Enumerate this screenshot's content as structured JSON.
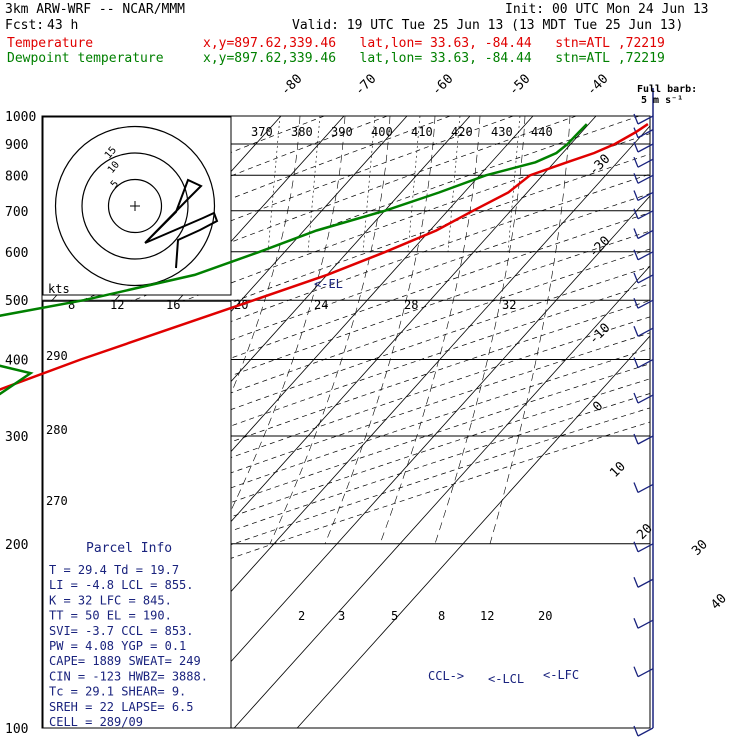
{
  "header": {
    "model": "3km ARW-WRF -- NCAR/MMM",
    "init": "Init: 00 UTC Mon 24 Jun 13",
    "fcst_label": "Fcst:",
    "fcst_value": "43 h",
    "valid": "Valid: 19 UTC Tue 25 Jun 13 (13 MDT Tue 25 Jun 13)",
    "temp_label": "Temperature",
    "dew_label": "Dewpoint temperature",
    "loc_text": "x,y=897.62,339.46   lat,lon= 33.63, -84.44   stn=ATL ,72219"
  },
  "colors": {
    "temperature": "#e00000",
    "dewpoint": "#008000",
    "wind": "#1a237e",
    "parcel_text": "#1a237e"
  },
  "chart_data": {
    "type": "line",
    "title": "",
    "ylabel": "",
    "xlabel": "",
    "pressure_ticks": [
      100,
      200,
      300,
      400,
      500,
      600,
      700,
      800,
      900,
      1000
    ],
    "isotherm_labels": [
      "-80",
      "-70",
      "-60",
      "-50",
      "-40",
      "-30",
      "-20",
      "-10",
      "0",
      "10",
      "20",
      "30",
      "40"
    ],
    "theta_e_labels": [
      "370",
      "380",
      "390",
      "400",
      "410",
      "420",
      "430",
      "440"
    ],
    "theta_labels": [
      "290",
      "280",
      "270"
    ],
    "mixing_ratio_labels": [
      "2",
      "3",
      "5",
      "8",
      "12",
      "20"
    ],
    "hodograph_speed_labels": [
      "8",
      "12",
      "16",
      "20",
      "24",
      "28",
      "32"
    ],
    "hodograph_unit": "kts",
    "hodograph_ring_labels": [
      "5",
      "10",
      "15"
    ],
    "barb_key": "Full barb:",
    "barb_unit": "5 m s⁻¹",
    "series": [
      {
        "name": "Temperature",
        "pressure": [
          100,
          110,
          125,
          150,
          175,
          200,
          215,
          240,
          270,
          300,
          330,
          360,
          400,
          450,
          500,
          550,
          600,
          650,
          700,
          750,
          800,
          840,
          870,
          900,
          940,
          970
        ],
        "values": [
          -71,
          -68,
          -62,
          -60,
          -63,
          -66,
          -64,
          -59,
          -53,
          -47,
          -41,
          -35,
          -27,
          -17,
          -8,
          0,
          6,
          11,
          14,
          17,
          18,
          22,
          25,
          27,
          28.6,
          29.4
        ]
      },
      {
        "name": "Dewpoint temperature",
        "pressure": [
          100,
          125,
          150,
          175,
          200,
          250,
          300,
          350,
          380,
          400,
          430,
          450,
          500,
          550,
          600,
          650,
          700,
          750,
          800,
          840,
          870,
          900,
          940,
          970
        ],
        "values": [
          -82,
          -82,
          -81,
          -76,
          -70,
          -58,
          -46,
          -35,
          -33,
          -44,
          -57,
          -55,
          -35,
          -21,
          -14,
          -8,
          0,
          6,
          11,
          17,
          19,
          19.5,
          19.6,
          19.7
        ]
      }
    ],
    "wind_profile_pressure": [
      100,
      125,
      150,
      175,
      200,
      250,
      300,
      350,
      400,
      450,
      500,
      550,
      600,
      650,
      700,
      750,
      800,
      850,
      900,
      950,
      1000
    ],
    "annotations": [
      "<-EL",
      "CCL->",
      "<-LCL",
      "<-LFC"
    ],
    "parcel_info": {
      "title": "Parcel Info",
      "lines": [
        "T  =   29.4  Td =  19.7",
        "LI =   -4.8  LCL =  855.",
        "K  =     32  LFC =  845.",
        "TT =     50  EL  =  190.",
        "SVI=   -3.7  CCL =  853.",
        "PW =   4.08  YGP =   0.1",
        "CAPE=  1889  SWEAT=  249",
        "CIN =  -123  HWBZ= 3888.",
        "Tc  =  29.1  SHEAR=   9.",
        "SREH =   22  LAPSE=  6.5",
        "CELL = 289/09"
      ]
    },
    "hodograph_path": [
      [
        -0.5,
        -0.2
      ],
      [
        9.5,
        -5.0
      ],
      [
        6.5,
        -7.5
      ],
      [
        -0.8,
        -6.0
      ],
      [
        -3.7,
        -4.9
      ],
      [
        -0.5,
        -7.5
      ],
      [
        1.2,
        -10.5
      ],
      [
        1.4,
        -12.8
      ],
      [
        0.0,
        -12.0
      ],
      [
        -1.2,
        -7.9
      ]
    ]
  }
}
